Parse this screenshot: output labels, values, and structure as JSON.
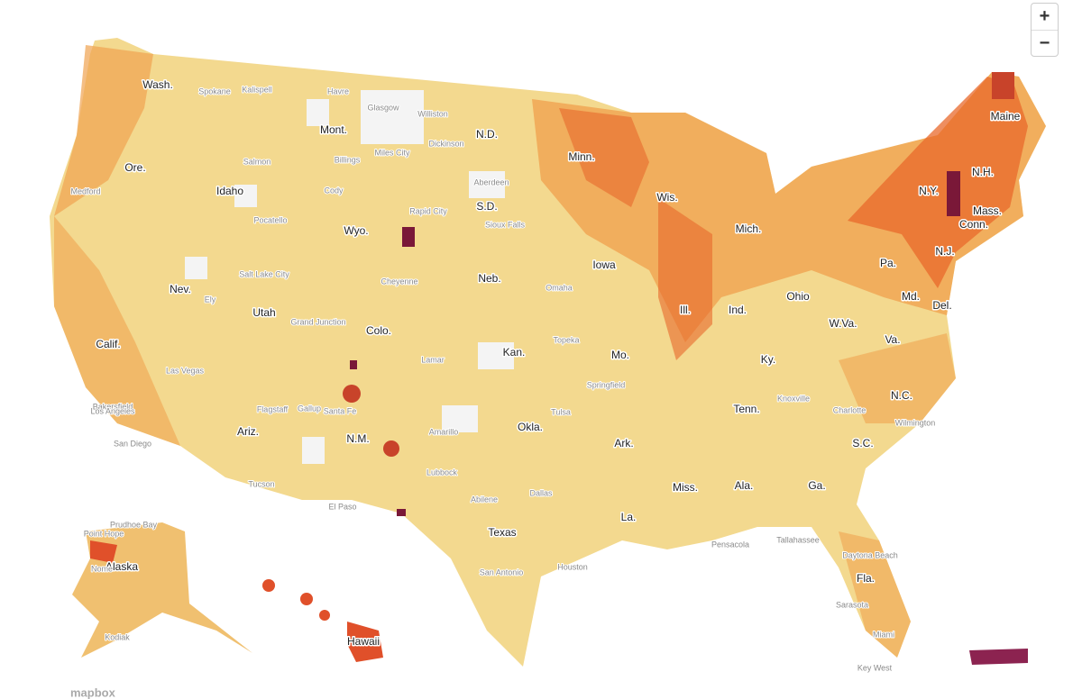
{
  "zoom_controls": {
    "zoom_in": "+",
    "zoom_out": "−"
  },
  "state_labels": [
    "Wash.",
    "Mont.",
    "N.D.",
    "Minn.",
    "Maine",
    "Ore.",
    "Idaho",
    "Wyo.",
    "S.D.",
    "Wis.",
    "Mich.",
    "N.Y.",
    "N.H.",
    "Mass.",
    "Conn.",
    "Nev.",
    "Utah",
    "Neb.",
    "Iowa",
    "Ill.",
    "Ind.",
    "Ohio",
    "Pa.",
    "N.J.",
    "Md.",
    "Del.",
    "W.Va.",
    "Va.",
    "Calif.",
    "Colo.",
    "Kan.",
    "Mo.",
    "Ky.",
    "Tenn.",
    "N.C.",
    "S.C.",
    "Ariz.",
    "N.M.",
    "Okla.",
    "Ark.",
    "Miss.",
    "Ala.",
    "Ga.",
    "La.",
    "Texas",
    "Fla.",
    "Alaska",
    "Hawaii"
  ],
  "city_labels": [
    "Spokane",
    "Kalispell",
    "Havre",
    "Glasgow",
    "Williston",
    "Billings",
    "Miles City",
    "Dickinson",
    "Medford",
    "Salmon",
    "Cody",
    "Rapid City",
    "Aberdeen",
    "Sioux Falls",
    "Pocatello",
    "Salt Lake City",
    "Cheyenne",
    "Omaha",
    "Ely",
    "Grand Junction",
    "Topeka",
    "Lamar",
    "Las Vegas",
    "Bakersfield",
    "Los Angeles",
    "San Diego",
    "Flagstaff",
    "Tucson",
    "Gallup",
    "Santa Fe",
    "Amarillo",
    "Lubbock",
    "El Paso",
    "Abilene",
    "Dallas",
    "Houston",
    "San Antonio",
    "Tulsa",
    "Springfield",
    "Knoxville",
    "Charlotte",
    "Tallahassee",
    "Pensacola",
    "Daytona Beach",
    "Sarasota",
    "Miami",
    "Key West",
    "Wilmington",
    "Prudhoe Bay",
    "Point Hope",
    "Nome",
    "Kodiak"
  ],
  "attribution": "mapbox"
}
